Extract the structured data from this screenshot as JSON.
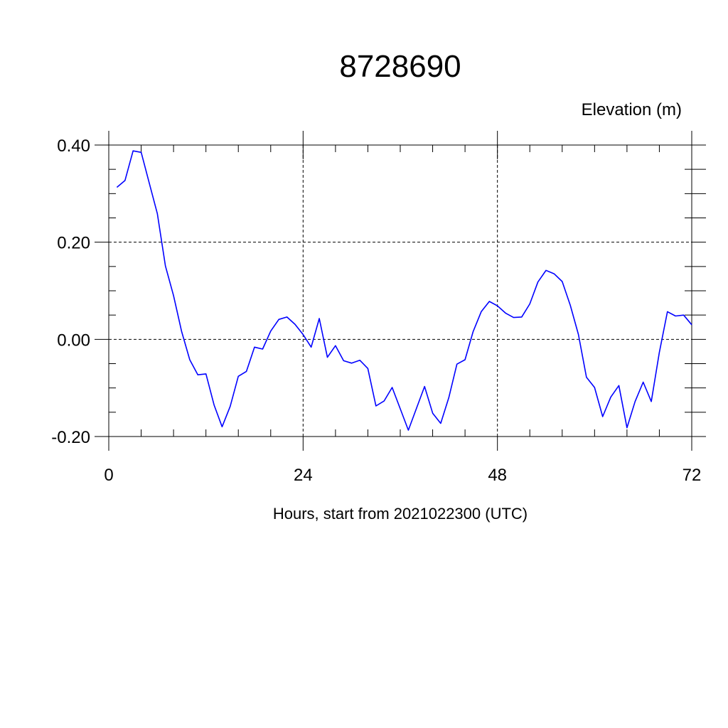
{
  "chart_data": {
    "type": "line",
    "title": "8728690",
    "ylabel": "Elevation (m)",
    "xlabel": "Hours, start from 2021022300 (UTC)",
    "xlim": [
      0,
      72
    ],
    "ylim": [
      -0.2,
      0.4
    ],
    "x_ticks": [
      0,
      24,
      48,
      72
    ],
    "x_tick_labels": [
      "0",
      "24",
      "48",
      "72"
    ],
    "y_ticks": [
      -0.2,
      0.0,
      0.2,
      0.4
    ],
    "y_tick_labels": [
      "-0.20",
      "0.00",
      "0.20",
      "0.40"
    ],
    "grid": true,
    "series_color": "#0000ff",
    "x": [
      1,
      2,
      3,
      4,
      5,
      6,
      7,
      8,
      9,
      10,
      11,
      12,
      13,
      14,
      15,
      16,
      17,
      18,
      19,
      20,
      21,
      22,
      23,
      24,
      25,
      26,
      27,
      28,
      29,
      30,
      31,
      32,
      33,
      34,
      35,
      36,
      37,
      38,
      39,
      40,
      41,
      42,
      43,
      44,
      45,
      46,
      47,
      48,
      49,
      50,
      51,
      52,
      53,
      54,
      55,
      56,
      57,
      58,
      59,
      60,
      61,
      62,
      63,
      64,
      65,
      66,
      67,
      68,
      69,
      70,
      71,
      72
    ],
    "y": [
      0.313,
      0.327,
      0.388,
      0.385,
      0.322,
      0.259,
      0.151,
      0.09,
      0.016,
      -0.042,
      -0.073,
      -0.071,
      -0.135,
      -0.18,
      -0.138,
      -0.076,
      -0.066,
      -0.016,
      -0.02,
      0.017,
      0.041,
      0.046,
      0.031,
      0.01,
      -0.016,
      0.043,
      -0.037,
      -0.013,
      -0.044,
      -0.049,
      -0.043,
      -0.06,
      -0.137,
      -0.127,
      -0.099,
      -0.143,
      -0.187,
      -0.142,
      -0.097,
      -0.152,
      -0.173,
      -0.12,
      -0.051,
      -0.042,
      0.016,
      0.057,
      0.078,
      0.069,
      0.054,
      0.045,
      0.046,
      0.073,
      0.118,
      0.142,
      0.135,
      0.119,
      0.07,
      0.01,
      -0.078,
      -0.099,
      -0.159,
      -0.119,
      -0.095,
      -0.182,
      -0.128,
      -0.088,
      -0.128,
      -0.027,
      0.057,
      0.048,
      0.05,
      0.03
    ]
  }
}
